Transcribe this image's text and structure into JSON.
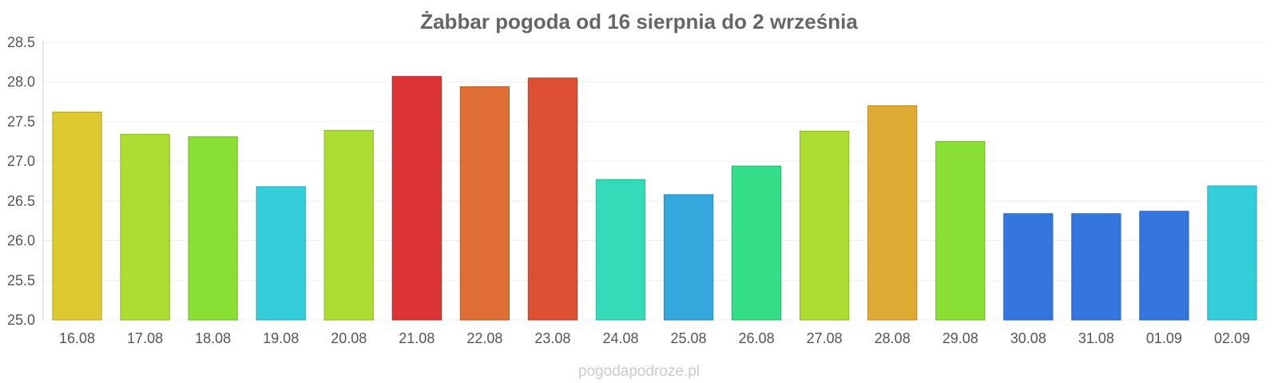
{
  "chart_data": {
    "type": "bar",
    "title": "Żabbar pogoda od 16 sierpnia do 2 września",
    "xlabel": "",
    "ylabel": "",
    "ylim": [
      25.0,
      28.5
    ],
    "yticks": [
      "25.0",
      "25.5",
      "26.0",
      "26.5",
      "27.0",
      "27.5",
      "28.0",
      "28.5"
    ],
    "grid": true,
    "categories": [
      "16.08",
      "17.08",
      "18.08",
      "19.08",
      "20.08",
      "21.08",
      "22.08",
      "23.08",
      "24.08",
      "25.08",
      "26.08",
      "27.08",
      "28.08",
      "29.08",
      "30.08",
      "31.08",
      "01.09",
      "02.09"
    ],
    "values": [
      27.62,
      27.34,
      27.31,
      26.68,
      27.39,
      28.07,
      27.94,
      28.05,
      26.77,
      26.58,
      26.94,
      27.38,
      27.7,
      27.25,
      26.34,
      26.34,
      26.37,
      26.69
    ],
    "colors": [
      "#ddc92f",
      "#addc32",
      "#8adf34",
      "#34cedb",
      "#addc32",
      "#dc3434",
      "#de6e34",
      "#dd5034",
      "#34dbb9",
      "#34a8dd",
      "#34dd88",
      "#addc32",
      "#ddaa34",
      "#8adf34",
      "#3476dd",
      "#3476dd",
      "#3476dd",
      "#34cedb"
    ]
  },
  "watermark": "pogodapodroze.pl"
}
